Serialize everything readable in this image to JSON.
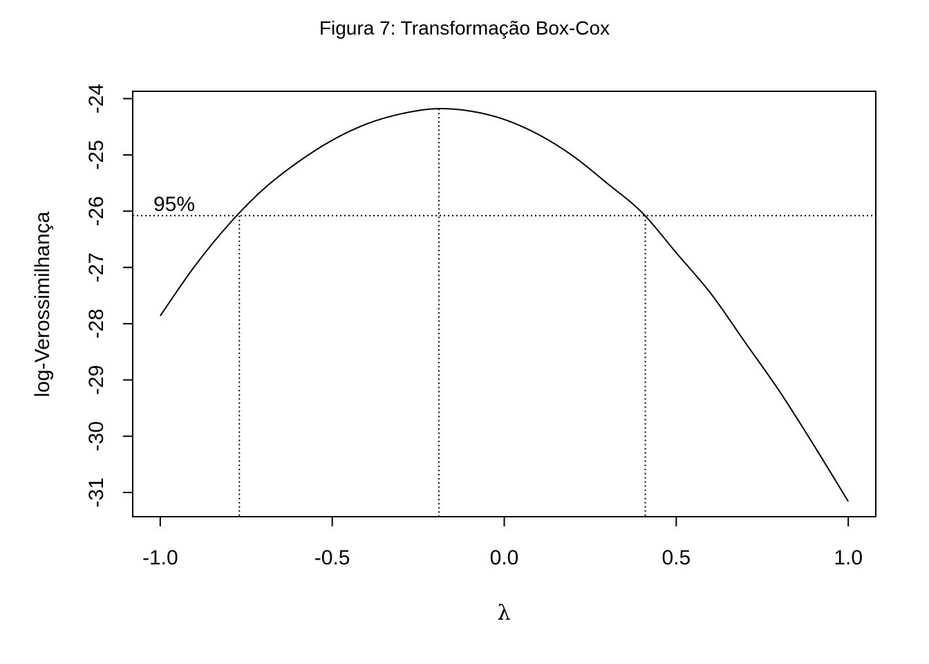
{
  "chart_data": {
    "type": "line",
    "title": "Figura 7: Transformação Box-Cox",
    "xlabel": "λ",
    "ylabel": "log-Verossimilhança",
    "xlim": [
      -1.08,
      1.08
    ],
    "ylim": [
      -31.43,
      -23.87
    ],
    "x_ticks": [
      -1.0,
      -0.5,
      0.0,
      0.5,
      1.0
    ],
    "x_tick_labels": [
      "-1.0",
      "-0.5",
      "0.0",
      "0.5",
      "1.0"
    ],
    "y_ticks": [
      -31,
      -30,
      -29,
      -28,
      -27,
      -26,
      -25,
      -24
    ],
    "y_tick_labels": [
      "-31",
      "-30",
      "-29",
      "-28",
      "-27",
      "-26",
      "-25",
      "-24"
    ],
    "grid": false,
    "series": [
      {
        "x": [
          -1.0,
          -0.9,
          -0.8,
          -0.7,
          -0.6,
          -0.5,
          -0.4,
          -0.3,
          -0.2,
          -0.1,
          0.0,
          0.1,
          0.2,
          0.3,
          0.4,
          0.5,
          0.6,
          0.7,
          0.8,
          0.9,
          1.0
        ],
        "y": [
          -27.86,
          -26.98,
          -26.23,
          -25.61,
          -25.13,
          -24.74,
          -24.45,
          -24.27,
          -24.18,
          -24.22,
          -24.37,
          -24.64,
          -25.02,
          -25.51,
          -26.02,
          -26.74,
          -27.46,
          -28.33,
          -29.2,
          -30.16,
          -31.16
        ]
      }
    ],
    "annotations": {
      "ci_label": "95%",
      "ci_level_y": -26.08,
      "lambda_hat": -0.19,
      "ci_lower": -0.77,
      "ci_upper": 0.41
    }
  }
}
